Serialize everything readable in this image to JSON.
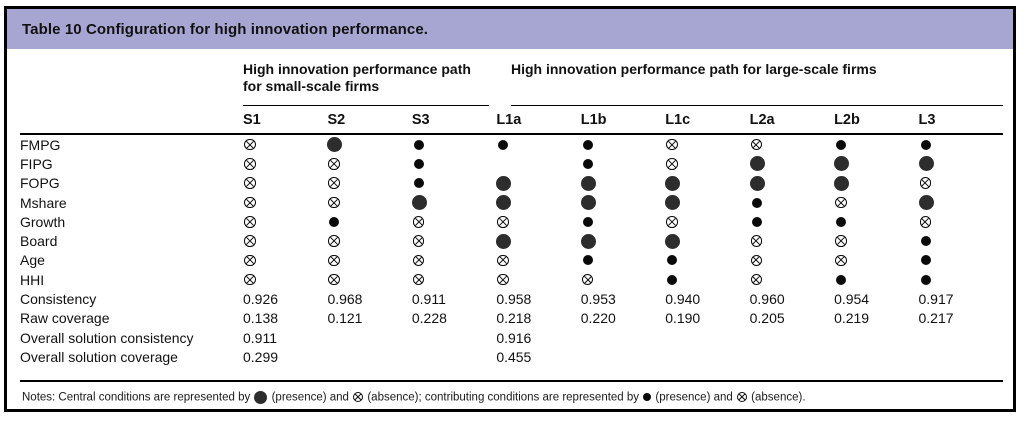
{
  "title": "Table 10 Configuration for high innovation performance.",
  "colors": {
    "title_band_background": "#a7a6d2",
    "border": "#000000",
    "central_circle_fill": "#2d2d2d",
    "contributing_circle_fill": "#0a0a0a"
  },
  "groups": [
    {
      "label": "High innovation performance path for small-scale firms",
      "columns_spanned": 3
    },
    {
      "label": "High innovation performance path for large-scale firms",
      "columns_spanned": 6
    }
  ],
  "columns": [
    "S1",
    "S2",
    "S3",
    "L1a",
    "L1b",
    "L1c",
    "L2a",
    "L2b",
    "L3"
  ],
  "symbol_legend": {
    "cp": "central condition present (large filled circle)",
    "ca": "central condition absent (crossed circle)",
    "p": "contributing condition present (small filled circle)",
    "a": "contributing condition absent (small crossed circle)",
    "": "blank cell"
  },
  "rows": [
    {
      "label": "FMPG",
      "type": "symbols",
      "cells": [
        "a",
        "cp",
        "p",
        "p",
        "p",
        "a",
        "a",
        "p",
        "p"
      ]
    },
    {
      "label": "FIPG",
      "type": "symbols",
      "cells": [
        "a",
        "a",
        "p",
        "",
        "p",
        "a",
        "cp",
        "cp",
        "cp"
      ]
    },
    {
      "label": "FOPG",
      "type": "symbols",
      "cells": [
        "a",
        "a",
        "p",
        "cp",
        "cp",
        "cp",
        "cp",
        "cp",
        "a"
      ]
    },
    {
      "label": "Mshare",
      "type": "symbols",
      "cells": [
        "a",
        "a",
        "cp",
        "cp",
        "cp",
        "cp",
        "p",
        "a",
        "cp"
      ]
    },
    {
      "label": "Growth",
      "type": "symbols",
      "cells": [
        "a",
        "p",
        "a",
        "a",
        "p",
        "a",
        "p",
        "p",
        "a"
      ]
    },
    {
      "label": "Board",
      "type": "symbols",
      "cells": [
        "a",
        "a",
        "a",
        "cp",
        "cp",
        "cp",
        "a",
        "a",
        "p"
      ]
    },
    {
      "label": "Age",
      "type": "symbols",
      "cells": [
        "a",
        "a",
        "a",
        "a",
        "p",
        "p",
        "a",
        "a",
        "p"
      ]
    },
    {
      "label": "HHI",
      "type": "symbols",
      "cells": [
        "a",
        "a",
        "a",
        "a",
        "a",
        "p",
        "a",
        "p",
        "p"
      ]
    },
    {
      "label": "Consistency",
      "type": "values",
      "cells": [
        "0.926",
        "0.968",
        "0.911",
        "0.958",
        "0.953",
        "0.940",
        "0.960",
        "0.954",
        "0.917"
      ]
    },
    {
      "label": "Raw coverage",
      "type": "values",
      "cells": [
        "0.138",
        "0.121",
        "0.228",
        "0.218",
        "0.220",
        "0.190",
        "0.205",
        "0.219",
        "0.217"
      ]
    },
    {
      "label": "Overall solution consistency",
      "type": "values",
      "cells": [
        "0.911",
        "",
        "",
        "0.916",
        "",
        "",
        "",
        "",
        ""
      ]
    },
    {
      "label": "Overall solution coverage",
      "type": "values",
      "cells": [
        "0.299",
        "",
        "",
        "0.455",
        "",
        "",
        "",
        "",
        ""
      ]
    }
  ],
  "notes_segments": [
    {
      "text": "Notes: Central conditions are represented by "
    },
    {
      "symbol": "cp"
    },
    {
      "text": " (presence) and "
    },
    {
      "symbol": "ca"
    },
    {
      "text": " (absence); contributing conditions are represented by "
    },
    {
      "symbol": "p"
    },
    {
      "text": " (presence) and "
    },
    {
      "symbol": "a"
    },
    {
      "text": " (absence)."
    }
  ]
}
